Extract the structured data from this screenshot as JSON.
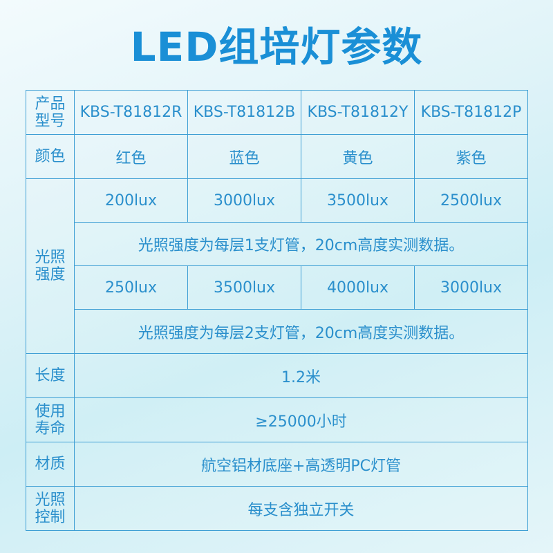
{
  "title": "LED组培灯参数",
  "table": {
    "model_header": [
      "产品",
      "型号"
    ],
    "models": [
      "KBS-T81812R",
      "KBS-T81812B",
      "KBS-T81812Y",
      "KBS-T81812P"
    ],
    "color_header": "颜色",
    "colors": [
      "红色",
      "蓝色",
      "黄色",
      "紫色"
    ],
    "intensity_header": [
      "光照",
      "强度"
    ],
    "intensity_1": [
      "200lux",
      "3000lux",
      "3500lux",
      "2500lux"
    ],
    "note_1": "光照强度为每层1支灯管，20cm高度实测数据。",
    "intensity_2": [
      "250lux",
      "3500lux",
      "4000lux",
      "3000lux"
    ],
    "note_2": "光照强度为每层2支灯管，20cm高度实测数据。",
    "length_header": "长度",
    "length": "1.2米",
    "life_header": [
      "使用",
      "寿命"
    ],
    "life": "≥25000小时",
    "material_header": "材质",
    "material": "航空铝材底座+高透明PC灯管",
    "control_header": [
      "光照",
      "控制"
    ],
    "control": "每支含独立开关"
  }
}
